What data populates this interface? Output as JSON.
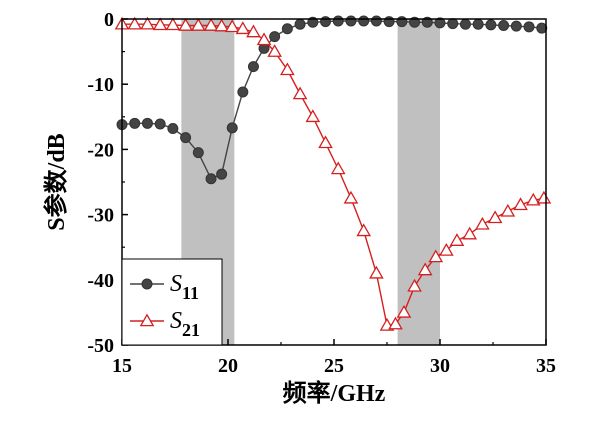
{
  "chart_data": {
    "type": "line",
    "xlabel": "频率/GHz",
    "ylabel": "S参数/dB",
    "xlim": [
      15,
      35
    ],
    "ylim": [
      -50,
      0
    ],
    "xticks": [
      15,
      20,
      25,
      30,
      35
    ],
    "yticks": [
      0,
      -10,
      -20,
      -30,
      -40,
      -50
    ],
    "grid": false,
    "legend_position": "bottom-left",
    "shaded_bands": [
      {
        "x": [
          17.8,
          20.3
        ],
        "color": "#c0c0c0"
      },
      {
        "x": [
          28.0,
          30.0
        ],
        "color": "#c0c0c0"
      }
    ],
    "series": [
      {
        "name": "S11",
        "name_main": "S",
        "name_sub": "11",
        "color": "#444444",
        "marker": "circle",
        "x": [
          15.0,
          15.6,
          16.2,
          16.8,
          17.4,
          18.0,
          18.6,
          19.2,
          19.7,
          20.2,
          20.7,
          21.2,
          21.7,
          22.2,
          22.8,
          23.4,
          24.0,
          24.6,
          25.2,
          25.8,
          26.4,
          27.0,
          27.6,
          28.2,
          28.8,
          29.4,
          30.0,
          30.6,
          31.2,
          31.8,
          32.4,
          33.0,
          33.6,
          34.2,
          34.8
        ],
        "y": [
          -16.2,
          -16.0,
          -16.0,
          -16.1,
          -16.8,
          -18.2,
          -20.5,
          -24.5,
          -23.8,
          -16.7,
          -11.2,
          -7.3,
          -4.5,
          -2.7,
          -1.5,
          -0.8,
          -0.5,
          -0.4,
          -0.3,
          -0.3,
          -0.3,
          -0.3,
          -0.4,
          -0.4,
          -0.5,
          -0.5,
          -0.6,
          -0.7,
          -0.8,
          -0.8,
          -0.9,
          -1.0,
          -1.1,
          -1.2,
          -1.4
        ]
      },
      {
        "name": "S21",
        "name_main": "S",
        "name_sub": "21",
        "color": "#d42020",
        "marker": "triangle",
        "x": [
          15.0,
          15.6,
          16.2,
          16.8,
          17.4,
          18.0,
          18.6,
          19.2,
          19.7,
          20.2,
          20.7,
          21.2,
          21.7,
          22.2,
          22.8,
          23.4,
          24.0,
          24.6,
          25.2,
          25.8,
          26.4,
          27.0,
          27.5,
          27.9,
          28.3,
          28.8,
          29.3,
          29.8,
          30.3,
          30.8,
          31.4,
          32.0,
          32.6,
          33.2,
          33.8,
          34.4,
          34.9
        ],
        "y": [
          -0.8,
          -0.8,
          -0.8,
          -0.9,
          -0.9,
          -1.0,
          -1.0,
          -1.0,
          -1.1,
          -1.2,
          -1.5,
          -2.0,
          -3.2,
          -5.0,
          -7.8,
          -11.5,
          -15.0,
          -19.0,
          -23.0,
          -27.5,
          -32.5,
          -39.0,
          -47.0,
          -46.8,
          -45.0,
          -41.0,
          -38.5,
          -36.5,
          -35.5,
          -34.0,
          -33.0,
          -31.5,
          -30.5,
          -29.5,
          -28.5,
          -27.8,
          -27.5
        ]
      }
    ]
  }
}
